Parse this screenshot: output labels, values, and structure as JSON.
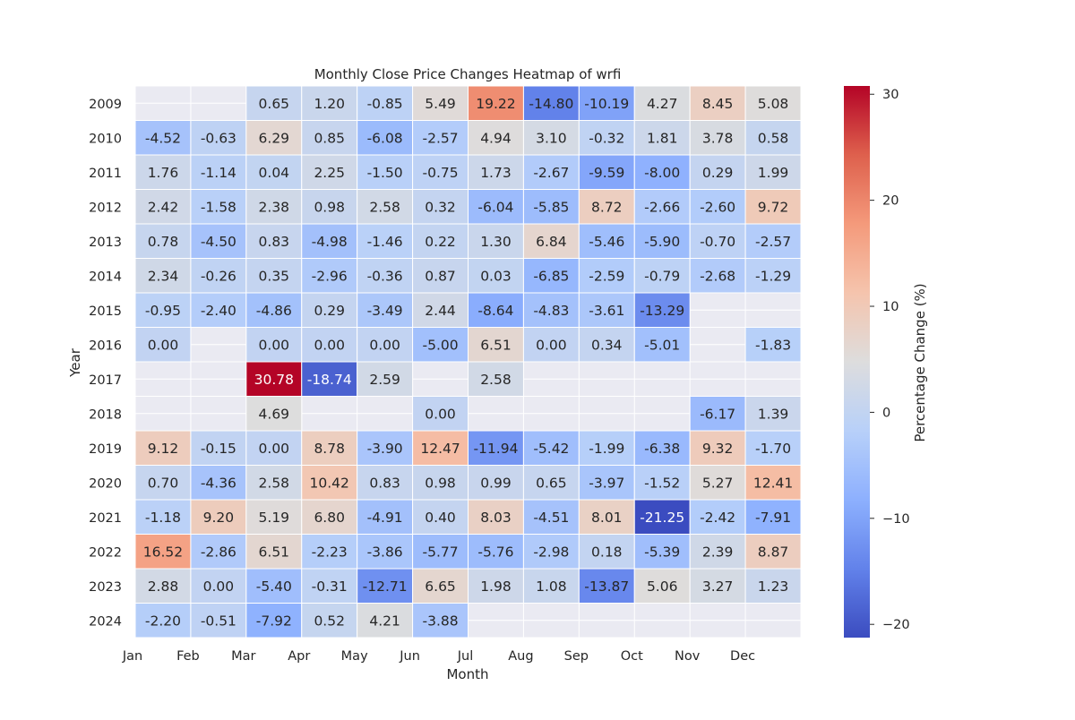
{
  "chart_data": {
    "type": "heatmap",
    "title": "Monthly Close Price Changes Heatmap of wrfi",
    "xlabel": "Month",
    "ylabel": "Year",
    "colorbar_label": "Percentage Change (%)",
    "colormap": "coolwarm",
    "color_range": [
      -21.25,
      30.78
    ],
    "colorbar_ticks": [
      30,
      20,
      10,
      0,
      -10,
      -20
    ],
    "colorbar_tick_labels": [
      "30",
      "20",
      "10",
      "0",
      "−10",
      "−20"
    ],
    "missing_color": "#eaeaf2",
    "grid_line_color": "#ffffff",
    "months": [
      "Jan",
      "Feb",
      "Mar",
      "Apr",
      "May",
      "Jun",
      "Jul",
      "Aug",
      "Sep",
      "Oct",
      "Nov",
      "Dec"
    ],
    "years": [
      "2009",
      "2010",
      "2011",
      "2012",
      "2013",
      "2014",
      "2015",
      "2016",
      "2017",
      "2018",
      "2019",
      "2020",
      "2021",
      "2022",
      "2023",
      "2024"
    ],
    "values": [
      [
        null,
        null,
        0.65,
        1.2,
        -0.85,
        5.49,
        19.22,
        -14.8,
        -10.19,
        4.27,
        8.45,
        5.08
      ],
      [
        -4.52,
        -0.63,
        6.29,
        0.85,
        -6.08,
        -2.57,
        4.94,
        3.1,
        -0.32,
        1.81,
        3.78,
        0.58
      ],
      [
        1.76,
        -1.14,
        0.04,
        2.25,
        -1.5,
        -0.75,
        1.73,
        -2.67,
        -9.59,
        -8.0,
        0.29,
        1.99
      ],
      [
        2.42,
        -1.58,
        2.38,
        0.98,
        2.58,
        0.32,
        -6.04,
        -5.85,
        8.72,
        -2.66,
        -2.6,
        9.72
      ],
      [
        0.78,
        -4.5,
        0.83,
        -4.98,
        -1.46,
        0.22,
        1.3,
        6.84,
        -5.46,
        -5.9,
        -0.7,
        -2.57
      ],
      [
        2.34,
        -0.26,
        0.35,
        -2.96,
        -0.36,
        0.87,
        0.03,
        -6.85,
        -2.59,
        -0.79,
        -2.68,
        -1.29
      ],
      [
        -0.95,
        -2.4,
        -4.86,
        0.29,
        -3.49,
        2.44,
        -8.64,
        -4.83,
        -3.61,
        -13.29,
        null,
        null
      ],
      [
        0.0,
        null,
        0.0,
        0.0,
        0.0,
        -5.0,
        6.51,
        0.0,
        0.34,
        -5.01,
        null,
        -1.83
      ],
      [
        null,
        null,
        30.78,
        -18.74,
        2.59,
        null,
        2.58,
        null,
        null,
        null,
        null,
        null
      ],
      [
        null,
        null,
        4.69,
        null,
        null,
        0.0,
        null,
        null,
        null,
        null,
        -6.17,
        1.39
      ],
      [
        9.12,
        -0.15,
        0.0,
        8.78,
        -3.9,
        12.47,
        -11.94,
        -5.42,
        -1.99,
        -6.38,
        9.32,
        -1.7
      ],
      [
        0.7,
        -4.36,
        2.58,
        10.42,
        0.83,
        0.98,
        0.99,
        0.65,
        -3.97,
        -1.52,
        5.27,
        12.41
      ],
      [
        -1.18,
        9.2,
        5.19,
        6.8,
        -4.91,
        0.4,
        8.03,
        -4.51,
        8.01,
        -21.25,
        -2.42,
        -7.91
      ],
      [
        16.52,
        -2.86,
        6.51,
        -2.23,
        -3.86,
        -5.77,
        -5.76,
        -2.98,
        0.18,
        -5.39,
        2.39,
        8.87
      ],
      [
        2.88,
        0.0,
        -5.4,
        -0.31,
        -12.71,
        6.65,
        1.98,
        1.08,
        -13.87,
        5.06,
        3.27,
        1.23
      ],
      [
        -2.2,
        -0.51,
        -7.92,
        0.52,
        4.21,
        -3.88,
        null,
        null,
        null,
        null,
        null,
        null
      ]
    ]
  }
}
